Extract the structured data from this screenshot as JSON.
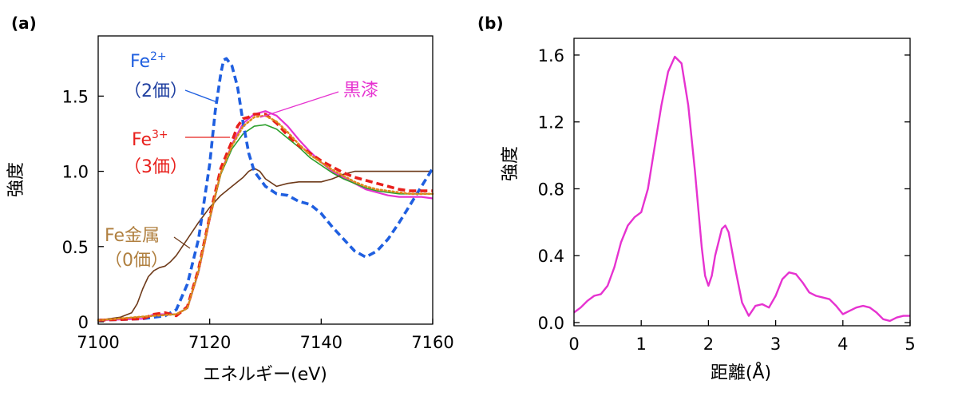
{
  "chart_data": [
    {
      "type": "line",
      "panel_label": "(a)",
      "xlabel": "エネルギー(eV)",
      "ylabel": "強度",
      "xlim": [
        7100,
        7160
      ],
      "ylim": [
        0,
        1.9
      ],
      "xticks": [
        7100,
        7120,
        7140,
        7160
      ],
      "yticks": [
        0,
        0.5,
        1.0,
        1.5
      ],
      "ytick_labels": [
        "0",
        "0.5",
        "1.0",
        "1.5"
      ],
      "grid": false,
      "colors": {
        "fe2": "#1f5fe0",
        "fe3": "#e8201c",
        "black_lacquer": "#e632d0",
        "fe_metal": "#6e3a1a",
        "green": "#2ca02c",
        "orange": "#e0891c",
        "fe_metal_label": "#b08040",
        "fe2_label_sub": "#1f3fa0"
      },
      "series": [
        {
          "key": "fe2",
          "style": "dashed",
          "x": [
            7100,
            7108,
            7112,
            7114,
            7116,
            7118,
            7119,
            7120,
            7121,
            7122,
            7122.5,
            7123,
            7124,
            7125,
            7126,
            7127,
            7128,
            7130,
            7132,
            7134,
            7136,
            7138,
            7140,
            7142,
            7144,
            7146,
            7148,
            7150,
            7152,
            7154,
            7156,
            7158,
            7160
          ],
          "y": [
            0.01,
            0.02,
            0.04,
            0.08,
            0.25,
            0.55,
            0.8,
            1.05,
            1.4,
            1.65,
            1.74,
            1.75,
            1.7,
            1.56,
            1.32,
            1.12,
            1.0,
            0.9,
            0.85,
            0.84,
            0.8,
            0.78,
            0.72,
            0.63,
            0.55,
            0.47,
            0.43,
            0.47,
            0.55,
            0.66,
            0.78,
            0.9,
            1.02
          ]
        },
        {
          "key": "fe3",
          "style": "dashed",
          "x": [
            7100,
            7108,
            7110,
            7112,
            7114,
            7116,
            7118,
            7120,
            7122,
            7124,
            7125,
            7126,
            7127,
            7128,
            7130,
            7132,
            7134,
            7136,
            7138,
            7140,
            7142,
            7144,
            7146,
            7148,
            7150,
            7152,
            7154,
            7156,
            7158,
            7160
          ],
          "y": [
            0.01,
            0.02,
            0.05,
            0.06,
            0.04,
            0.1,
            0.35,
            0.7,
            1.02,
            1.2,
            1.3,
            1.35,
            1.36,
            1.38,
            1.38,
            1.32,
            1.24,
            1.17,
            1.12,
            1.07,
            1.03,
            0.99,
            0.96,
            0.94,
            0.92,
            0.9,
            0.88,
            0.87,
            0.87,
            0.87
          ]
        },
        {
          "key": "black_lacquer",
          "style": "solid",
          "x": [
            7100,
            7108,
            7110,
            7112,
            7114,
            7116,
            7118,
            7120,
            7122,
            7124,
            7126,
            7128,
            7130,
            7132,
            7134,
            7136,
            7138,
            7140,
            7142,
            7144,
            7146,
            7148,
            7150,
            7152,
            7154,
            7156,
            7158,
            7160
          ],
          "y": [
            0.01,
            0.02,
            0.05,
            0.05,
            0.05,
            0.09,
            0.33,
            0.68,
            0.99,
            1.18,
            1.32,
            1.38,
            1.4,
            1.37,
            1.3,
            1.21,
            1.13,
            1.06,
            1.0,
            0.96,
            0.92,
            0.88,
            0.86,
            0.84,
            0.83,
            0.83,
            0.83,
            0.82
          ]
        },
        {
          "key": "green",
          "style": "solid",
          "x": [
            7100,
            7110,
            7114,
            7116,
            7118,
            7120,
            7122,
            7124,
            7126,
            7128,
            7130,
            7132,
            7134,
            7136,
            7138,
            7140,
            7142,
            7144,
            7146,
            7148,
            7150,
            7152,
            7154,
            7156,
            7158,
            7160
          ],
          "y": [
            0.01,
            0.04,
            0.05,
            0.09,
            0.33,
            0.68,
            0.98,
            1.15,
            1.25,
            1.3,
            1.31,
            1.28,
            1.22,
            1.16,
            1.09,
            1.04,
            0.99,
            0.95,
            0.92,
            0.89,
            0.87,
            0.86,
            0.85,
            0.85,
            0.85,
            0.85
          ]
        },
        {
          "key": "orange",
          "style": "dotted",
          "x": [
            7100,
            7110,
            7114,
            7116,
            7118,
            7120,
            7122,
            7124,
            7126,
            7128,
            7130,
            7132,
            7134,
            7136,
            7138,
            7140,
            7142,
            7144,
            7146,
            7148,
            7150,
            7152,
            7154,
            7156,
            7158,
            7160
          ],
          "y": [
            0.01,
            0.04,
            0.05,
            0.09,
            0.34,
            0.69,
            0.99,
            1.17,
            1.3,
            1.36,
            1.37,
            1.33,
            1.26,
            1.18,
            1.11,
            1.06,
            1.01,
            0.97,
            0.93,
            0.9,
            0.88,
            0.87,
            0.86,
            0.85,
            0.85,
            0.85
          ]
        },
        {
          "key": "fe_metal",
          "style": "solid",
          "x": [
            7100,
            7104,
            7106,
            7107,
            7108,
            7109,
            7110,
            7111,
            7112,
            7113,
            7114,
            7116,
            7118,
            7120,
            7122,
            7124,
            7126,
            7127,
            7128,
            7129,
            7130,
            7132,
            7134,
            7136,
            7138,
            7140,
            7142,
            7144,
            7146,
            7148,
            7150,
            7152,
            7154,
            7156,
            7158,
            7160
          ],
          "y": [
            0.01,
            0.03,
            0.06,
            0.12,
            0.22,
            0.3,
            0.34,
            0.36,
            0.37,
            0.4,
            0.44,
            0.55,
            0.66,
            0.76,
            0.84,
            0.9,
            0.96,
            1.0,
            1.02,
            1.0,
            0.95,
            0.9,
            0.92,
            0.93,
            0.93,
            0.93,
            0.95,
            0.98,
            1.0,
            1.0,
            1.0,
            1.0,
            1.0,
            1.0,
            1.0,
            1.0
          ]
        }
      ],
      "annotations": [
        {
          "key": "fe2",
          "text": "Fe",
          "sup": "2+",
          "line2": "（2価）"
        },
        {
          "key": "black_lacquer",
          "text": "黒漆"
        },
        {
          "key": "fe3",
          "text": "Fe",
          "sup": "3+",
          "line2": "（3価）"
        },
        {
          "key": "fe_metal",
          "text": "Fe金属",
          "line2": "（0価）"
        }
      ]
    },
    {
      "type": "line",
      "panel_label": "(b)",
      "xlabel": "距離(Å)",
      "ylabel": "強度",
      "xlim": [
        0,
        5
      ],
      "ylim": [
        0,
        1.7
      ],
      "xticks": [
        0,
        1,
        2,
        3,
        4,
        5
      ],
      "yticks": [
        0.0,
        0.4,
        0.8,
        1.2,
        1.6
      ],
      "ytick_labels": [
        "0.0",
        "0.4",
        "0.8",
        "1.2",
        "1.6"
      ],
      "grid": false,
      "colors": {
        "line": "#e632d0"
      },
      "series": [
        {
          "key": "line",
          "style": "solid",
          "x": [
            0,
            0.1,
            0.2,
            0.3,
            0.4,
            0.5,
            0.6,
            0.7,
            0.8,
            0.9,
            1.0,
            1.1,
            1.2,
            1.3,
            1.4,
            1.5,
            1.6,
            1.7,
            1.8,
            1.9,
            1.95,
            2.0,
            2.05,
            2.1,
            2.2,
            2.25,
            2.3,
            2.4,
            2.5,
            2.6,
            2.7,
            2.8,
            2.9,
            3.0,
            3.1,
            3.2,
            3.3,
            3.4,
            3.5,
            3.6,
            3.7,
            3.8,
            3.9,
            4.0,
            4.1,
            4.2,
            4.3,
            4.4,
            4.5,
            4.6,
            4.7,
            4.8,
            4.9,
            5.0
          ],
          "y": [
            0.06,
            0.09,
            0.13,
            0.16,
            0.17,
            0.22,
            0.33,
            0.48,
            0.58,
            0.63,
            0.66,
            0.8,
            1.05,
            1.3,
            1.5,
            1.59,
            1.55,
            1.3,
            0.9,
            0.45,
            0.28,
            0.22,
            0.28,
            0.4,
            0.56,
            0.58,
            0.54,
            0.32,
            0.12,
            0.04,
            0.1,
            0.11,
            0.09,
            0.16,
            0.26,
            0.3,
            0.29,
            0.24,
            0.18,
            0.16,
            0.15,
            0.14,
            0.1,
            0.05,
            0.07,
            0.09,
            0.1,
            0.09,
            0.06,
            0.02,
            0.01,
            0.03,
            0.04,
            0.04
          ]
        }
      ]
    }
  ]
}
